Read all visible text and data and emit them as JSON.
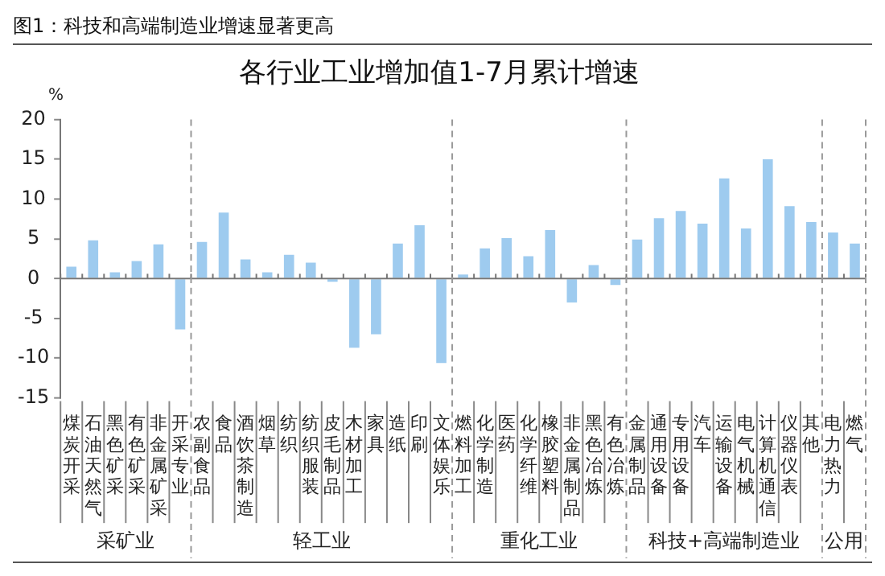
{
  "chart_data": {
    "type": "bar",
    "title": "图1：科技和高端制造业增速显著更高",
    "subtitle": "各行业工业增加值1-7月累计增速",
    "ylabel": "%",
    "categories": [
      "煤炭开采",
      "石油天然气",
      "黑色矿采",
      "有色矿采",
      "非金属矿采",
      "开采专业",
      "农副食品",
      "食品",
      "酒饮茶制造",
      "烟草",
      "纺织",
      "纺织服装",
      "皮毛制品",
      "木材加工",
      "家具",
      "造纸",
      "印刷",
      "文体娱乐",
      "燃料加工",
      "化学制造",
      "医药",
      "化学纤维",
      "橡胶塑料",
      "非金属制品",
      "黑色冶炼",
      "有色冶炼",
      "金属制品",
      "通用设备",
      "专用设备",
      "汽车",
      "运输设备",
      "电气机械",
      "计算机通信",
      "仪器仪表",
      "其他",
      "电力热力",
      "燃气"
    ],
    "values": [
      1.5,
      4.8,
      0.8,
      2.2,
      4.3,
      -6.4,
      4.6,
      8.3,
      2.4,
      0.8,
      3.0,
      2.0,
      -0.4,
      -8.7,
      -7.0,
      4.4,
      6.7,
      -10.6,
      0.5,
      3.8,
      5.1,
      2.8,
      6.1,
      -3.0,
      1.7,
      -0.8,
      4.9,
      7.6,
      8.5,
      6.9,
      12.6,
      6.3,
      15.0,
      9.1,
      7.1,
      5.8,
      4.4
    ],
    "color": "#9ecbef",
    "ylim": [
      -15,
      20
    ],
    "yticks": [
      -15,
      -10,
      -5,
      0,
      5,
      10,
      15,
      20
    ],
    "annotations": [
      "采矿业",
      "轻工业",
      "重化工业",
      "科技+高端制造业",
      "公用"
    ],
    "grid": false,
    "legend": false
  }
}
